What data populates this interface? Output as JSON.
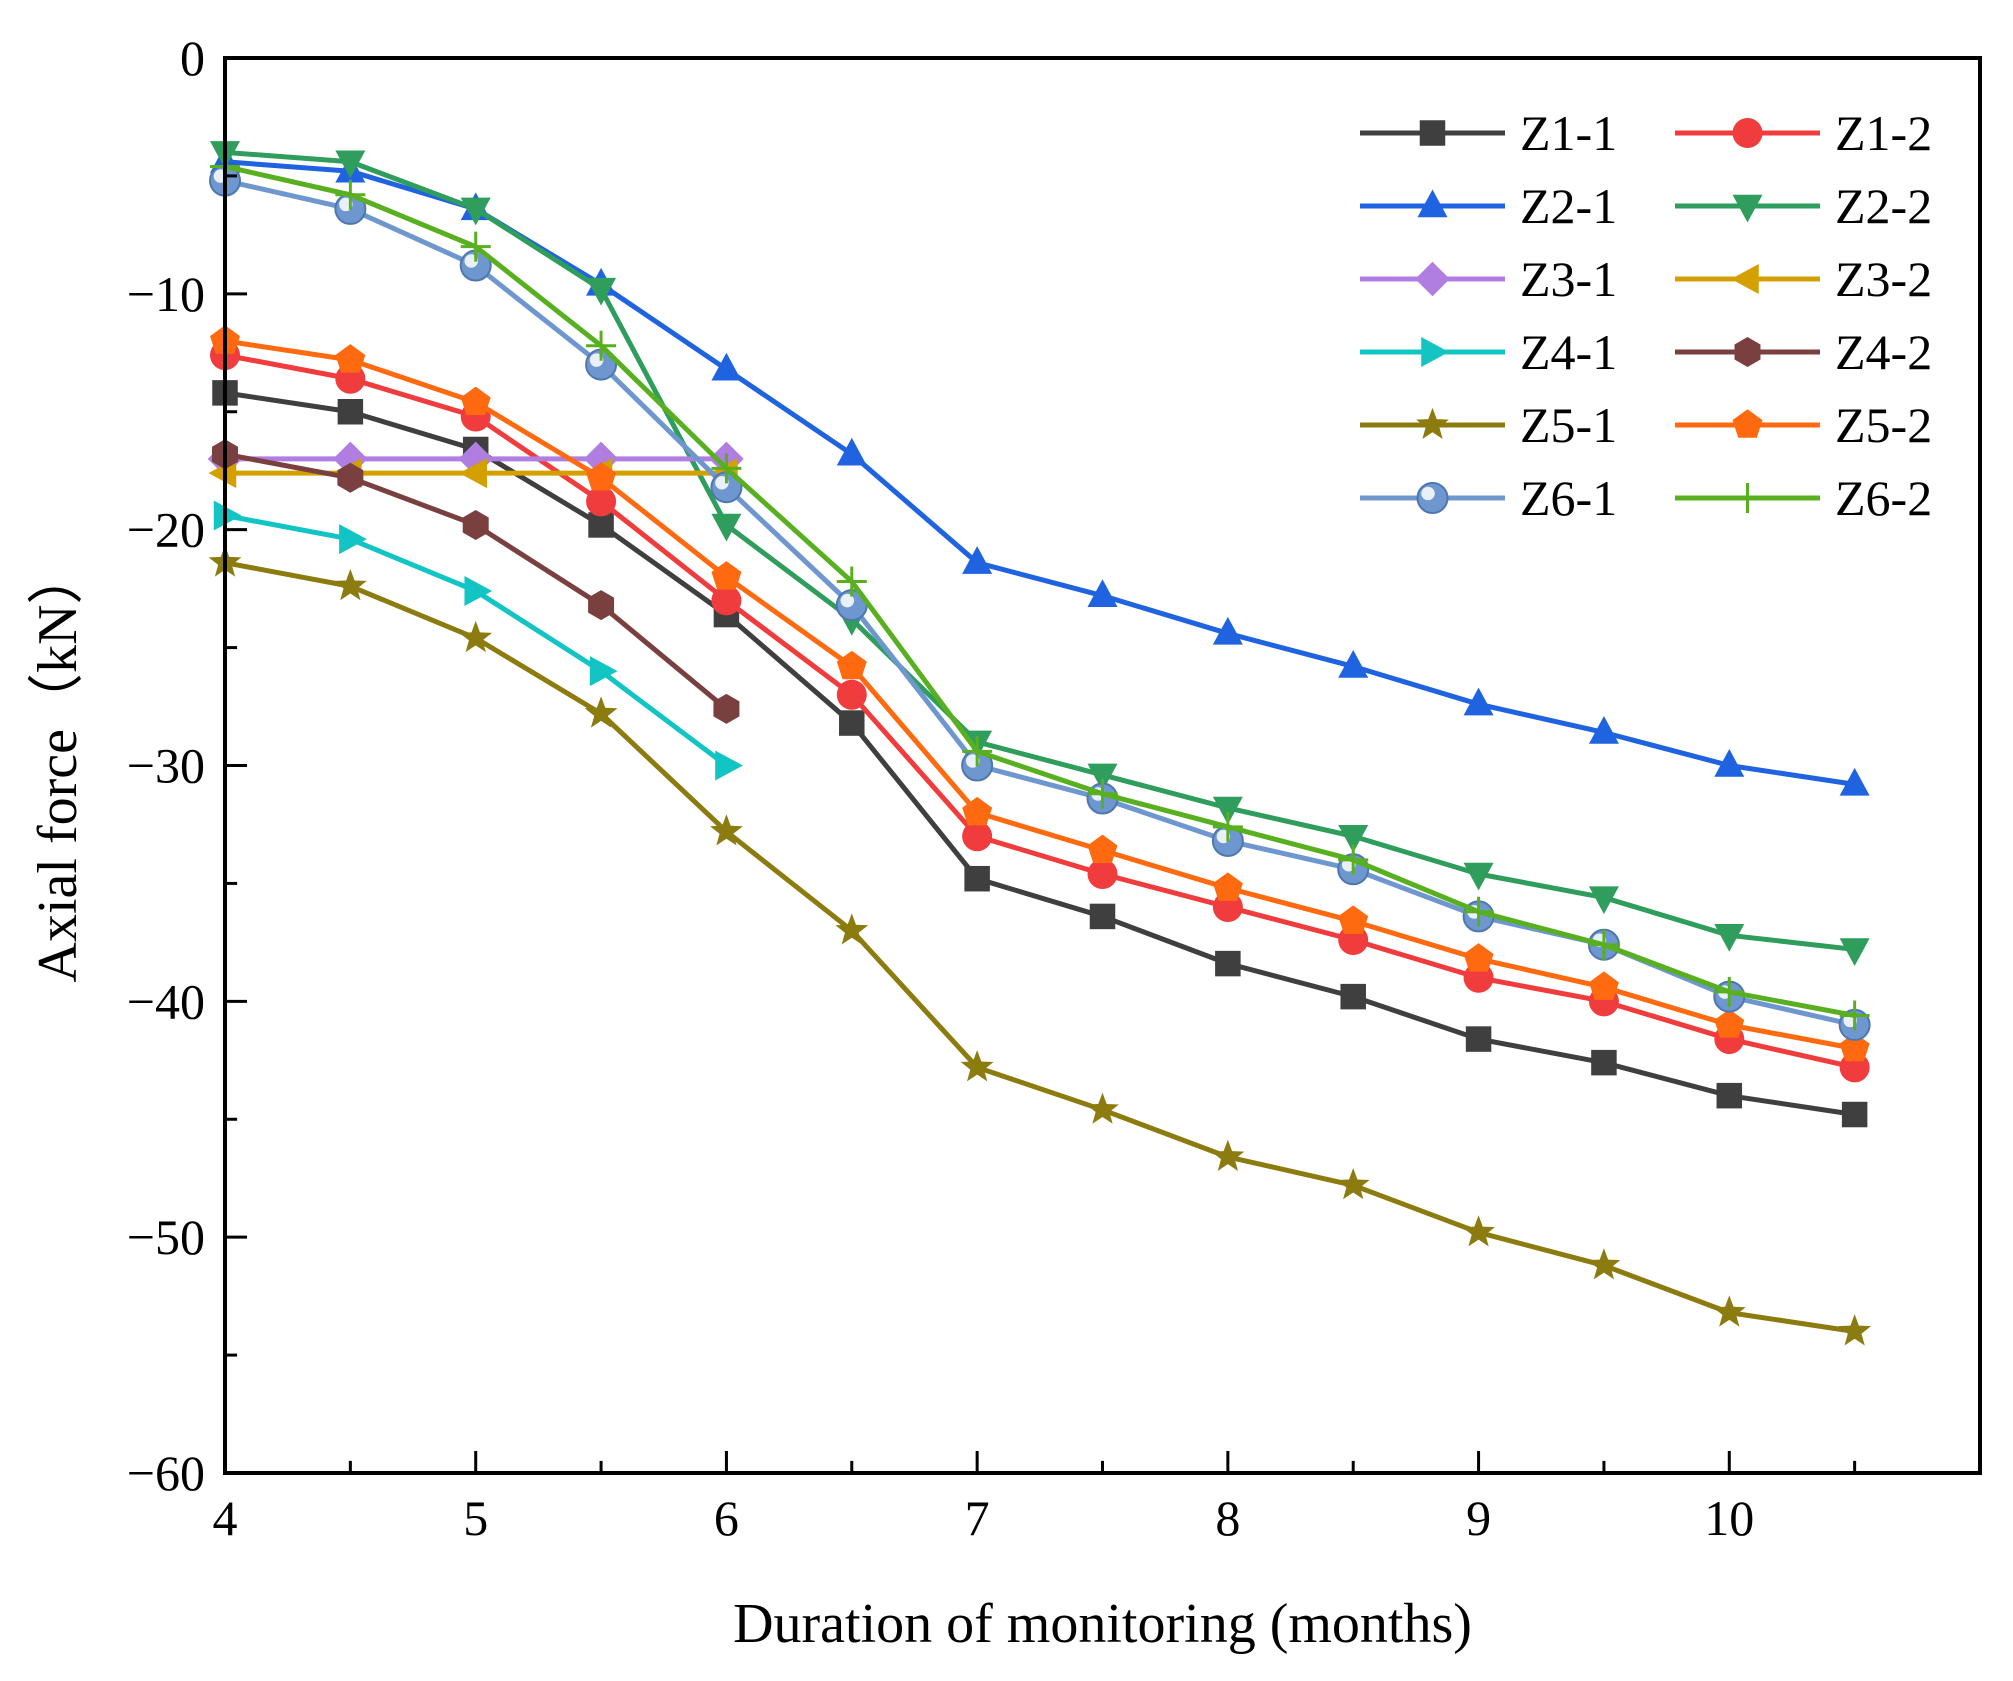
{
  "chart_data": {
    "type": "line",
    "title": "",
    "xlabel": "Duration of monitoring (months)",
    "ylabel": "Axial force（kN）",
    "xlim": [
      4,
      11
    ],
    "ylim": [
      -60,
      0
    ],
    "x_ticks": [
      4,
      5,
      6,
      7,
      8,
      9,
      10
    ],
    "x_tick_labels": [
      "4",
      "5",
      "6",
      "7",
      "8",
      "9",
      "10"
    ],
    "y_ticks": [
      0,
      -10,
      -20,
      -30,
      -40,
      -50,
      -60
    ],
    "y_tick_labels": [
      "0",
      "−10",
      "−20",
      "−30",
      "−40",
      "−50",
      "−60"
    ],
    "legend_position": "top-right",
    "grid": false,
    "series": [
      {
        "name": "Z1-1",
        "color": "#3f3f3f",
        "marker": "square",
        "x": [
          4,
          4.5,
          5,
          5.5,
          6,
          6.5,
          7,
          7.5,
          8,
          8.5,
          9,
          9.5,
          10,
          10.5
        ],
        "y": [
          -14.2,
          -15.0,
          -16.6,
          -19.8,
          -23.6,
          -28.2,
          -34.8,
          -36.4,
          -38.4,
          -39.8,
          -41.6,
          -42.6,
          -44.0,
          -44.8
        ]
      },
      {
        "name": "Z1-2",
        "color": "#f03c3c",
        "marker": "circle",
        "x": [
          4,
          4.5,
          5,
          5.5,
          6,
          6.5,
          7,
          7.5,
          8,
          8.5,
          9,
          9.5,
          10,
          10.5
        ],
        "y": [
          -12.6,
          -13.6,
          -15.2,
          -18.8,
          -23.0,
          -27.0,
          -33.0,
          -34.6,
          -36.0,
          -37.4,
          -39.0,
          -40.0,
          -41.6,
          -42.8
        ]
      },
      {
        "name": "Z2-1",
        "color": "#1f63e0",
        "marker": "triangle-up",
        "x": [
          4,
          4.5,
          5,
          5.5,
          6,
          6.5,
          7,
          7.5,
          8,
          8.5,
          9,
          9.5,
          10,
          10.5
        ],
        "y": [
          -4.4,
          -4.8,
          -6.4,
          -9.6,
          -13.2,
          -16.8,
          -21.4,
          -22.8,
          -24.4,
          -25.8,
          -27.4,
          -28.6,
          -30.0,
          -30.8
        ]
      },
      {
        "name": "Z2-2",
        "color": "#2f9e5c",
        "marker": "triangle-down",
        "x": [
          4,
          4.5,
          5,
          5.5,
          6,
          6.5,
          7,
          7.5,
          8,
          8.5,
          9,
          9.5,
          10,
          10.5
        ],
        "y": [
          -4.0,
          -4.4,
          -6.4,
          -9.8,
          -19.8,
          -23.8,
          -29.0,
          -30.4,
          -31.8,
          -33.0,
          -34.6,
          -35.6,
          -37.2,
          -37.8
        ]
      },
      {
        "name": "Z3-1",
        "color": "#b07de0",
        "marker": "diamond",
        "x": [
          4,
          4.5,
          5,
          5.5,
          6
        ],
        "y": [
          -17.0,
          -17.0,
          -17.0,
          -17.0,
          -17.0
        ]
      },
      {
        "name": "Z3-2",
        "color": "#d4a000",
        "marker": "triangle-left",
        "x": [
          4,
          4.5,
          5,
          5.5,
          6
        ],
        "y": [
          -17.6,
          -17.6,
          -17.6,
          -17.6,
          -17.6
        ]
      },
      {
        "name": "Z4-1",
        "color": "#12c4c4",
        "marker": "triangle-right",
        "x": [
          4,
          4.5,
          5,
          5.5,
          6
        ],
        "y": [
          -19.4,
          -20.4,
          -22.6,
          -26.0,
          -30.0
        ]
      },
      {
        "name": "Z4-2",
        "color": "#7a4040",
        "marker": "hexagon",
        "x": [
          4,
          4.5,
          5,
          5.5,
          6
        ],
        "y": [
          -16.8,
          -17.8,
          -19.8,
          -23.2,
          -27.6
        ]
      },
      {
        "name": "Z5-1",
        "color": "#8c7c10",
        "marker": "star",
        "x": [
          4,
          4.5,
          5,
          5.5,
          6,
          6.5,
          7,
          7.5,
          8,
          8.5,
          9,
          9.5,
          10,
          10.5
        ],
        "y": [
          -21.4,
          -22.4,
          -24.6,
          -27.8,
          -32.8,
          -37.0,
          -42.8,
          -44.6,
          -46.6,
          -47.8,
          -49.8,
          -51.2,
          -53.2,
          -54.0
        ]
      },
      {
        "name": "Z5-2",
        "color": "#ff6a10",
        "marker": "pentagon",
        "x": [
          4,
          4.5,
          5,
          5.5,
          6,
          6.5,
          7,
          7.5,
          8,
          8.5,
          9,
          9.5,
          10,
          10.5
        ],
        "y": [
          -12.0,
          -12.8,
          -14.6,
          -17.8,
          -22.0,
          -25.8,
          -32.0,
          -33.6,
          -35.2,
          -36.6,
          -38.2,
          -39.4,
          -41.0,
          -42.0
        ]
      },
      {
        "name": "Z6-1",
        "color": "#6f97cf",
        "marker": "sphere",
        "x": [
          4,
          4.5,
          5,
          5.5,
          6,
          6.5,
          7,
          7.5,
          8,
          8.5,
          9,
          9.5,
          10,
          10.5
        ],
        "y": [
          -5.2,
          -6.4,
          -8.8,
          -13.0,
          -18.2,
          -23.2,
          -30.0,
          -31.4,
          -33.2,
          -34.4,
          -36.4,
          -37.6,
          -39.8,
          -41.0
        ]
      },
      {
        "name": "Z6-2",
        "color": "#58b020",
        "marker": "plus",
        "x": [
          4,
          4.5,
          5,
          5.5,
          6,
          6.5,
          7,
          7.5,
          8,
          8.5,
          9,
          9.5,
          10,
          10.5
        ],
        "y": [
          -4.6,
          -5.8,
          -8.0,
          -12.2,
          -17.4,
          -22.2,
          -29.4,
          -31.2,
          -32.6,
          -34.0,
          -36.2,
          -37.6,
          -39.6,
          -40.6
        ]
      }
    ]
  }
}
